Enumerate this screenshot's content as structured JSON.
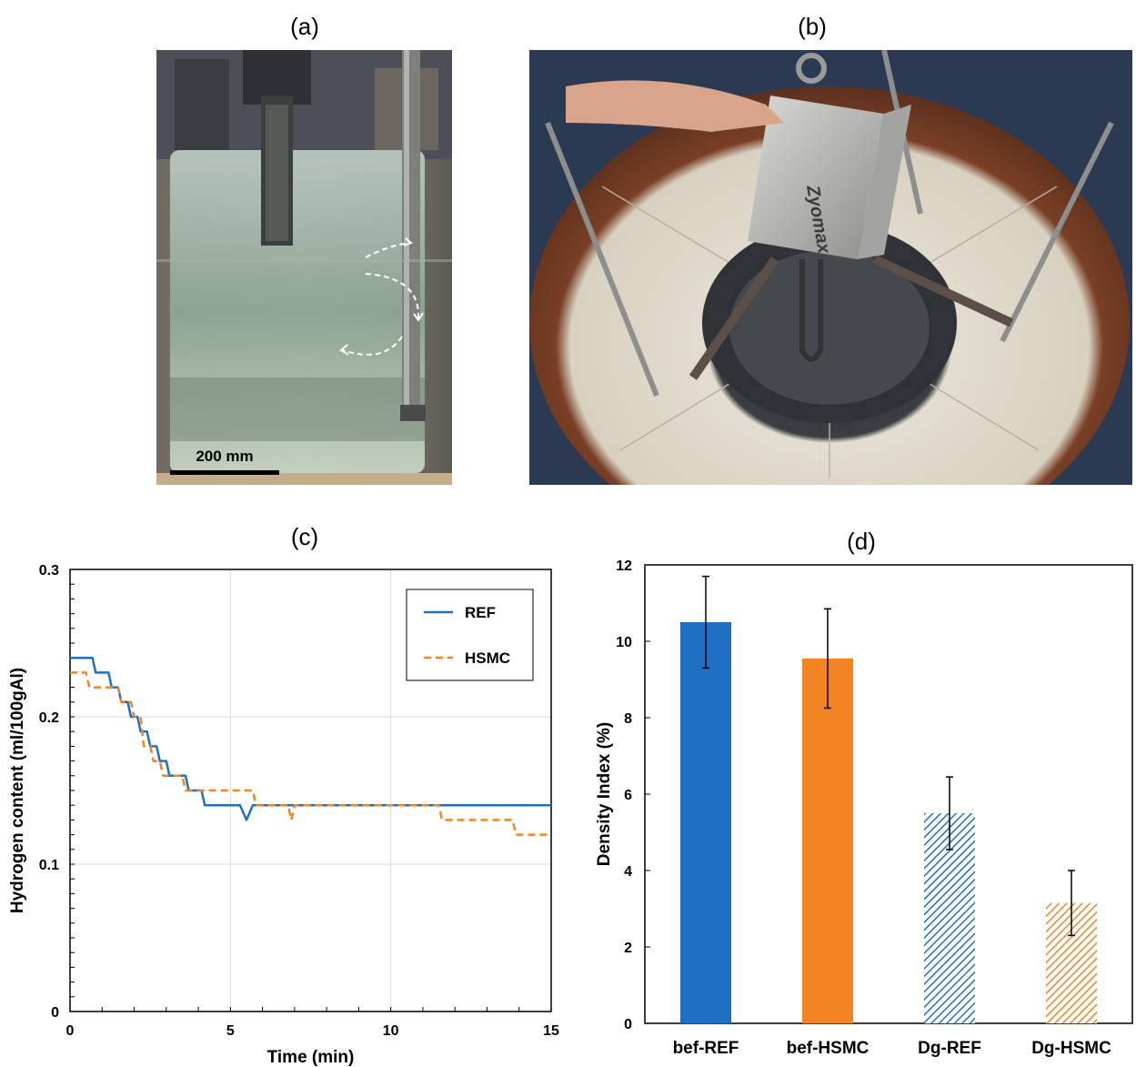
{
  "panels": {
    "a": {
      "label": "(a)",
      "scale_bar": "200 mm"
    },
    "b": {
      "label": "(b)",
      "brand": "Zyomax"
    },
    "c": {
      "label": "(c)"
    },
    "d": {
      "label": "(d)"
    }
  },
  "chart_data": [
    {
      "type": "line",
      "xlabel": "Time (min)",
      "ylabel": "Hydrogen content (ml/100gAl)",
      "xlim": [
        0,
        15
      ],
      "ylim": [
        0,
        0.3
      ],
      "xticks": [
        "0",
        "5",
        "10",
        "15"
      ],
      "yticks": [
        "0",
        "0.1",
        "0.2",
        "0.3"
      ],
      "grid": true,
      "legend_position": "top-right",
      "series": [
        {
          "name": "REF",
          "color": "#1f6fc5",
          "style": "solid",
          "x": [
            0,
            0.7,
            0.8,
            1.2,
            1.3,
            1.5,
            1.6,
            1.8,
            1.9,
            2.1,
            2.2,
            2.4,
            2.5,
            2.7,
            2.8,
            3.0,
            3.1,
            3.3,
            3.4,
            3.6,
            3.7,
            4.1,
            4.2,
            5.3,
            5.5,
            5.7,
            15
          ],
          "y": [
            0.24,
            0.24,
            0.23,
            0.23,
            0.22,
            0.22,
            0.21,
            0.21,
            0.2,
            0.2,
            0.19,
            0.19,
            0.18,
            0.18,
            0.17,
            0.17,
            0.16,
            0.16,
            0.16,
            0.16,
            0.15,
            0.15,
            0.14,
            0.14,
            0.13,
            0.14,
            0.14
          ]
        },
        {
          "name": "HSMC",
          "color": "#f28424",
          "style": "dashed",
          "x": [
            0,
            0.5,
            0.6,
            1.5,
            1.6,
            1.9,
            2.0,
            2.2,
            2.3,
            2.5,
            2.6,
            2.8,
            2.9,
            3.2,
            3.3,
            3.5,
            3.6,
            5.7,
            5.8,
            6.8,
            6.9,
            7.0,
            11.5,
            11.6,
            13.8,
            13.9,
            15
          ],
          "y": [
            0.23,
            0.23,
            0.22,
            0.22,
            0.21,
            0.21,
            0.2,
            0.2,
            0.18,
            0.18,
            0.17,
            0.17,
            0.16,
            0.16,
            0.16,
            0.16,
            0.15,
            0.15,
            0.14,
            0.14,
            0.13,
            0.14,
            0.14,
            0.13,
            0.13,
            0.12,
            0.12
          ]
        }
      ]
    },
    {
      "type": "bar",
      "ylabel": "Density Index (%)",
      "ylim": [
        0,
        12
      ],
      "yticks": [
        "0",
        "2",
        "4",
        "6",
        "8",
        "10",
        "12"
      ],
      "categories": [
        "bef-REF",
        "bef-HSMC",
        "Dg-REF",
        "Dg-HSMC"
      ],
      "values": [
        10.5,
        9.55,
        5.5,
        3.15
      ],
      "errors": [
        1.2,
        1.3,
        0.95,
        0.85
      ],
      "colors": [
        "#1f6fc5",
        "#f28424",
        "#1f6fc5",
        "#f28424"
      ],
      "fills": [
        "solid",
        "solid",
        "hatched",
        "hatched"
      ]
    }
  ]
}
